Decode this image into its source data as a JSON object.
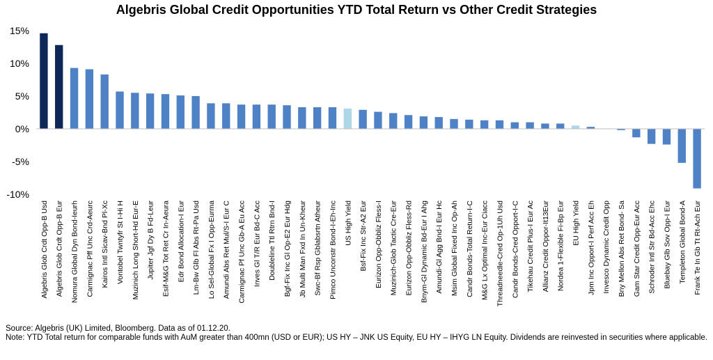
{
  "chart_data": {
    "type": "bar",
    "title": "Algebris Global Credit Opportunities YTD Total Return vs Other Credit Strategies",
    "xlabel": "",
    "ylabel": "",
    "ylim": [
      -10,
      15
    ],
    "yticks": [
      -10,
      -5,
      0,
      5,
      10,
      15
    ],
    "ytick_labels": [
      "-10%",
      "-5%",
      "0%",
      "5%",
      "10%",
      "15%"
    ],
    "value_unit": "%",
    "grid": false,
    "legend": "none",
    "colors": {
      "highlight": "#0e2758",
      "peer": "#4f81c6",
      "index": "#aed6e6",
      "axis": "#bfbfbf"
    },
    "categories": [
      "Algebris Glob Crdt Opp-B Usd",
      "Algebris Glob Crdt Opp-B Eur",
      "Nomura Global Dyn Bond-Ieurh",
      "Carmignac Pff Unc Crd-Aeurc",
      "Kairos Intl Sicav-Bnd Pl-Xc",
      "Vontobel Twntyfr St I-Hi H",
      "Muzinich Long Short-Hd Eur-E",
      "Jupiter Jgf Dy B Fd-Leur",
      "Esif-M&G Tot Ret Cr In-Aeura",
      "Edr Bond Allocation-I Eur",
      "Lm-Bw Glb Fl Abs Rt-Pa Usd",
      "Lo Sel-Global Fx I Opp-Eurma",
      "Amundi Abs Ret Mul/S-I Eur C",
      "Carmignac Pf Unc Gb-A Eu Acc",
      "Inves Gl T/R Eur Bd-C Acc",
      "Doubleline Ttl Rtrn Bnd-I",
      "Bgf-Fix Inc Gl Op-E2 Eur Hdg",
      "Jb Multi Man Fxd In Un-Kheur",
      "Swc-Bf Rsp Gblabsrtn Atheur",
      "Pimco Unconstr Bond-I-Eh-Inc",
      "US High Yield",
      "Bsf-Fix Inc Str-A2 Eur",
      "Eurizon Opp-Obbliz Fless-I",
      "Muzinich-Glob Tactic Cre-Eur",
      "Eurizon Opp-Obbliz Fless-Rd",
      "Bnym-Gl Dynamic Bd-Eur I Ahg",
      "Amundi-Gl Agg Bnd-I Eur Hc",
      "Msim Global Fixed Inc Op-Ah",
      "Candr Bonds-Total Return-I-C",
      "M&G Lx Optimal Inc-Eur Ciacc",
      "Threadneedle-Cred Op-1Uh Usd",
      "Candr Bonds-Cred Opport-I-C",
      "Tikehau Credit Plus-I Eur Ac",
      "Allianz Credit Oppor-It13Eur",
      "Nordea 1-Flexible Fi-Bp Eur",
      "EU High Yield",
      "Jpm Inc Opport-I Perf Acc Eh",
      "Invesco Dynamic Credit Opp",
      "Bny Mellon Abs Ret Bond- Sa",
      "Gam Star Credit Opp-Eur Acc",
      "Schroder Intl Str Bd-Acc Ehc",
      "Bluebay Glb Sov Opp-I Eur",
      "Templeton Global Bond-A",
      "Frank Te In Gb Tt Rt-Ach Eur"
    ],
    "values": [
      14.6,
      12.8,
      9.3,
      9.1,
      8.3,
      5.7,
      5.5,
      5.4,
      5.3,
      5.1,
      5.0,
      3.9,
      3.9,
      3.7,
      3.7,
      3.7,
      3.6,
      3.3,
      3.3,
      3.3,
      3.1,
      2.9,
      2.6,
      2.4,
      2.1,
      1.9,
      1.8,
      1.5,
      1.4,
      1.3,
      1.3,
      1.0,
      1.0,
      0.8,
      0.8,
      0.5,
      0.3,
      0.0,
      -0.2,
      -1.3,
      -2.3,
      -2.4,
      -5.2,
      -9.1
    ],
    "bar_kinds": [
      "highlight",
      "highlight",
      "peer",
      "peer",
      "peer",
      "peer",
      "peer",
      "peer",
      "peer",
      "peer",
      "peer",
      "peer",
      "peer",
      "peer",
      "peer",
      "peer",
      "peer",
      "peer",
      "peer",
      "peer",
      "index",
      "peer",
      "peer",
      "peer",
      "peer",
      "peer",
      "peer",
      "peer",
      "peer",
      "peer",
      "peer",
      "peer",
      "peer",
      "peer",
      "peer",
      "index",
      "peer",
      "peer",
      "peer",
      "peer",
      "peer",
      "peer",
      "peer",
      "peer"
    ]
  },
  "notes": {
    "source": "Source: Algebris (UK) Limited, Bloomberg. Data as of 01.12.20.",
    "note": "Note: YTD Total return for comparable funds with AuM greater than 400mn (USD or EUR); US HY – JNK US Equity, EU HY – IHYG LN Equity. Dividends are reinvested in securities where applicable."
  }
}
